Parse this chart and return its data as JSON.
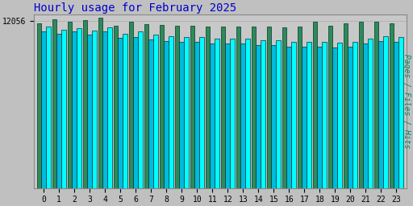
{
  "title": "Hourly usage for February 2025",
  "hours": [
    0,
    1,
    2,
    3,
    4,
    5,
    6,
    7,
    8,
    9,
    10,
    11,
    12,
    13,
    14,
    15,
    16,
    17,
    18,
    19,
    20,
    21,
    22,
    23
  ],
  "hits": [
    11600,
    11400,
    11500,
    11350,
    11550,
    11100,
    11300,
    11050,
    10950,
    10850,
    10850,
    10750,
    10750,
    10750,
    10650,
    10650,
    10550,
    10550,
    10550,
    10450,
    10550,
    10750,
    10950,
    10850
  ],
  "files": [
    11300,
    11100,
    11300,
    11050,
    11300,
    10800,
    10900,
    10700,
    10600,
    10500,
    10500,
    10400,
    10400,
    10400,
    10300,
    10300,
    10200,
    10200,
    10200,
    10100,
    10200,
    10400,
    10600,
    10500
  ],
  "pages": [
    11850,
    12150,
    11980,
    12080,
    12250,
    11680,
    11980,
    11820,
    11720,
    11680,
    11680,
    11620,
    11620,
    11620,
    11620,
    11620,
    11580,
    11620,
    11980,
    11680,
    11850,
    11980,
    11980,
    11880
  ],
  "bar_color_hits": "#00FFFF",
  "bar_color_files": "#00BBDD",
  "bar_color_pages": "#2E8B57",
  "bar_edge_color": "#003333",
  "background_color": "#C0C0C0",
  "plot_bg_color": "#C8C8C8",
  "title_color": "#0000CC",
  "ylabel_color": "#008866",
  "ylabel_text": "Pages / Files / Hits",
  "ylim_min": 0,
  "ylim_max": 12500,
  "ytick_val": 12056,
  "ytick_label": "12056",
  "title_fontsize": 10,
  "axis_fontsize": 7,
  "ylabel_fontsize": 7,
  "bar_width": 0.3
}
